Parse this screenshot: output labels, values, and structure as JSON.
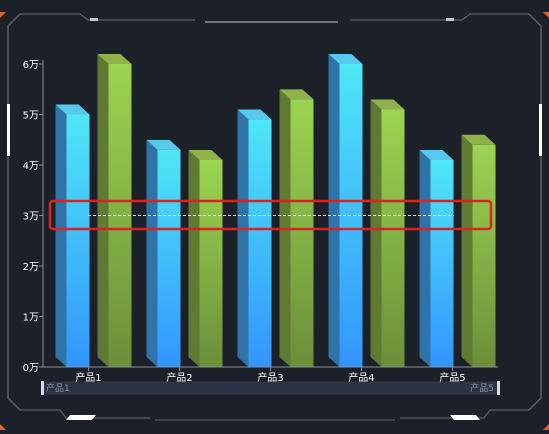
{
  "chart_data": {
    "type": "bar",
    "categories": [
      "产品1",
      "产品2",
      "产品3",
      "产品4",
      "产品5"
    ],
    "series": [
      {
        "values": [
          50000,
          43000,
          49000,
          60000,
          41000
        ],
        "color_top": "#4fe6f5",
        "color_bottom": "#3395ff"
      },
      {
        "values": [
          60000,
          41000,
          53000,
          51000,
          44000
        ],
        "color_top": "#9bd451",
        "color_bottom": "#6b8f3a"
      }
    ],
    "yticks": [
      "0万",
      "1万",
      "2万",
      "3万",
      "4万",
      "5万",
      "6万"
    ],
    "ylim": [
      0,
      60000
    ],
    "marker_line_value": 30000,
    "grid": false,
    "zoom": {
      "start_label": "产品1",
      "end_label": "产品5"
    }
  },
  "colors": {
    "background": "#1c2028",
    "frame": "#5a5f6a",
    "frame_accent": "#c0c4cc",
    "corner": "#e0622a",
    "highlight_box": "#e02020"
  }
}
